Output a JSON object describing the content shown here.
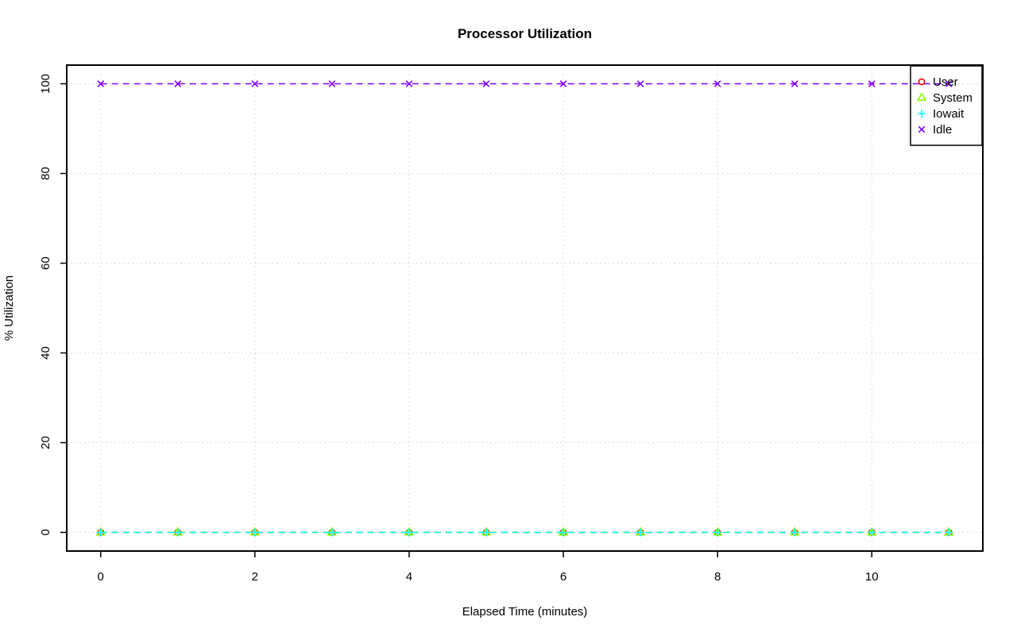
{
  "chart_data": {
    "type": "line",
    "title": "Processor Utilization",
    "xlabel": "Elapsed Time (minutes)",
    "ylabel": "% Utilization",
    "x": [
      0,
      1,
      2,
      3,
      4,
      5,
      6,
      7,
      8,
      9,
      10,
      11
    ],
    "series": [
      {
        "name": "User",
        "color": "#FF0000",
        "marker": "circle",
        "values": [
          0,
          0,
          0,
          0,
          0,
          0,
          0,
          0,
          0,
          0,
          0,
          0
        ]
      },
      {
        "name": "System",
        "color": "#80FF00",
        "marker": "triangle",
        "values": [
          0,
          0,
          0,
          0,
          0,
          0,
          0,
          0,
          0,
          0,
          0,
          0
        ]
      },
      {
        "name": "Iowait",
        "color": "#00FFFF",
        "marker": "plus",
        "values": [
          0,
          0,
          0,
          0,
          0,
          0,
          0,
          0,
          0,
          0,
          0,
          0
        ]
      },
      {
        "name": "Idle",
        "color": "#8000FF",
        "marker": "x",
        "values": [
          100,
          100,
          100,
          100,
          100,
          100,
          100,
          100,
          100,
          100,
          100,
          100
        ]
      }
    ],
    "x_ticks": [
      0,
      2,
      4,
      6,
      8,
      10
    ],
    "y_ticks": [
      0,
      20,
      40,
      60,
      80,
      100
    ],
    "xlim": [
      -0.44,
      11.44
    ],
    "ylim": [
      -4.16,
      104.16
    ],
    "grid": true,
    "grid_color": "#D3D3D3",
    "line_style": "dashed",
    "legend_position": "topright",
    "legend_entries": [
      "User",
      "System",
      "Iowait",
      "Idle"
    ],
    "axis_color": "#000000",
    "background_color": "#FFFFFF"
  }
}
